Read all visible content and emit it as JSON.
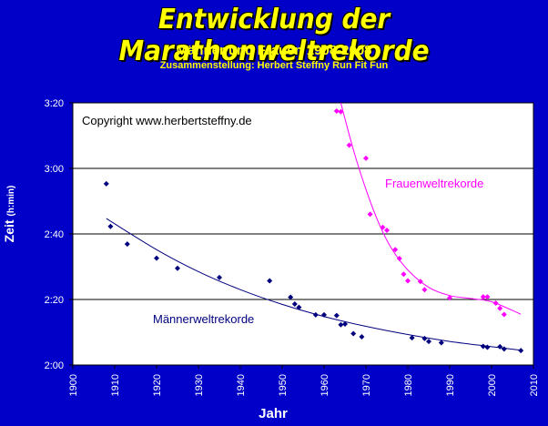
{
  "header": {
    "title": "Entwicklung der Marathonweltrekorde",
    "subtitle": "Männer und Frauen 1908-2008",
    "credit": "Zusammenstellung: Herbert Steffny Run Fit Fun"
  },
  "colors": {
    "background": "#0000c8",
    "plot_background": "#ffffff",
    "title": "#ffff00",
    "men": "#00007f",
    "women": "#ff00ff",
    "axis_text": "#ffffff"
  },
  "chart_data": {
    "type": "scatter",
    "title": "Entwicklung der Marathonweltrekorde",
    "xlabel": "Jahr",
    "ylabel": "Zeit",
    "ylabel_unit": "(h:min)",
    "xlim": [
      1900,
      2010
    ],
    "ylim_minutes": [
      120,
      200
    ],
    "x_ticks": [
      "1900",
      "1910",
      "1920",
      "1930",
      "1940",
      "1950",
      "1960",
      "1970",
      "1980",
      "1990",
      "2000",
      "2010"
    ],
    "y_ticks": [
      {
        "minutes": 120,
        "label": "2:00"
      },
      {
        "minutes": 140,
        "label": "2:20"
      },
      {
        "minutes": 160,
        "label": "2:40"
      },
      {
        "minutes": 180,
        "label": "3:00"
      },
      {
        "minutes": 200,
        "label": "3:20"
      }
    ],
    "grid": "horizontal",
    "annotation": "Copyright  www.herbertsteffny.de",
    "series": [
      {
        "name": "Männerweltrekorde",
        "color": "#00007f",
        "points": [
          [
            1908,
            175.3
          ],
          [
            1909,
            162.3
          ],
          [
            1913,
            156.9
          ],
          [
            1920,
            152.6
          ],
          [
            1925,
            149.5
          ],
          [
            1935,
            146.7
          ],
          [
            1947,
            145.7
          ],
          [
            1952,
            140.7
          ],
          [
            1953,
            138.6
          ],
          [
            1954,
            137.6
          ],
          [
            1958,
            135.3
          ],
          [
            1960,
            135.3
          ],
          [
            1963,
            135.1
          ],
          [
            1964,
            132.3
          ],
          [
            1965,
            132.5
          ],
          [
            1967,
            129.6
          ],
          [
            1969,
            128.6
          ],
          [
            1981,
            128.3
          ],
          [
            1984,
            128.1
          ],
          [
            1985,
            127.2
          ],
          [
            1988,
            126.8
          ],
          [
            1998,
            125.7
          ],
          [
            1999,
            125.4
          ],
          [
            2002,
            125.6
          ],
          [
            2003,
            124.9
          ],
          [
            2007,
            124.4
          ]
        ],
        "trend": [
          [
            1908,
            164.7
          ],
          [
            1920,
            155.2
          ],
          [
            1930,
            148.5
          ],
          [
            1940,
            143.0
          ],
          [
            1950,
            138.5
          ],
          [
            1960,
            134.8
          ],
          [
            1970,
            131.8
          ],
          [
            1980,
            129.3
          ],
          [
            1990,
            127.2
          ],
          [
            2000,
            125.6
          ],
          [
            2007,
            124.5
          ]
        ]
      },
      {
        "name": "Frauenweltrekorde",
        "color": "#ff00ff",
        "points": [
          [
            1963,
            197.5
          ],
          [
            1964,
            197.3
          ],
          [
            1966,
            187.1
          ],
          [
            1970,
            183.1
          ],
          [
            1971,
            166.0
          ],
          [
            1974,
            162.0
          ],
          [
            1975,
            161.1
          ],
          [
            1977,
            155.2
          ],
          [
            1978,
            152.5
          ],
          [
            1979,
            147.7
          ],
          [
            1980,
            145.7
          ],
          [
            1983,
            145.5
          ],
          [
            1984,
            143.0
          ],
          [
            1990,
            140.5
          ],
          [
            1998,
            140.8
          ],
          [
            1999,
            140.8
          ],
          [
            2001,
            138.9
          ],
          [
            2002,
            137.3
          ],
          [
            2003,
            135.4
          ]
        ],
        "trend": [
          [
            1964,
            200.0
          ],
          [
            1967,
            185.7
          ],
          [
            1970,
            173.6
          ],
          [
            1973,
            163.5
          ],
          [
            1976,
            155.8
          ],
          [
            1980,
            149.0
          ],
          [
            1985,
            143.7
          ],
          [
            1990,
            141.2
          ],
          [
            1995,
            140.3
          ],
          [
            2000,
            139.3
          ],
          [
            2007,
            135.5
          ]
        ]
      }
    ]
  }
}
